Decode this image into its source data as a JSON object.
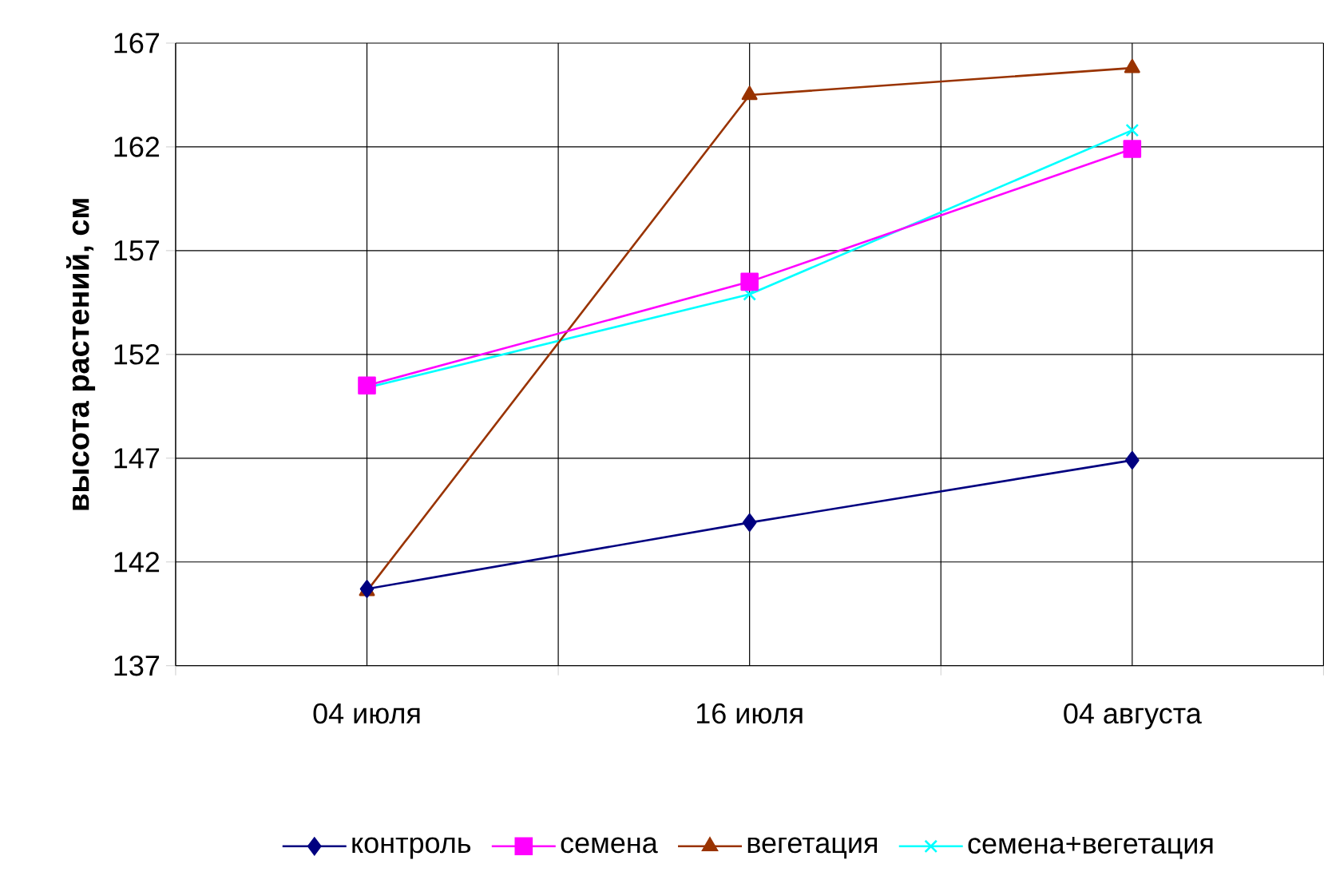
{
  "chart_data": {
    "type": "line",
    "ylabel": "высота растений, см",
    "categories": [
      "04 июля",
      "16 июля",
      "04 августа"
    ],
    "series": [
      {
        "name": "контроль",
        "color": "#000080",
        "marker": "diamond",
        "values": [
          140.7,
          143.9,
          146.9
        ]
      },
      {
        "name": "семена",
        "color": "#ff00ff",
        "marker": "square",
        "values": [
          150.5,
          155.5,
          161.9
        ]
      },
      {
        "name": "вегетация",
        "color": "#993300",
        "marker": "triangle",
        "values": [
          140.6,
          164.5,
          165.8
        ]
      },
      {
        "name": "семена+вегетация",
        "color": "#00ffff",
        "marker": "cross",
        "values": [
          150.4,
          154.9,
          162.8
        ]
      }
    ],
    "ylim": [
      137,
      167
    ],
    "yticks": [
      137,
      142,
      147,
      152,
      157,
      162,
      167
    ],
    "grid": true,
    "legend": "bottom",
    "line_style": "solid"
  }
}
